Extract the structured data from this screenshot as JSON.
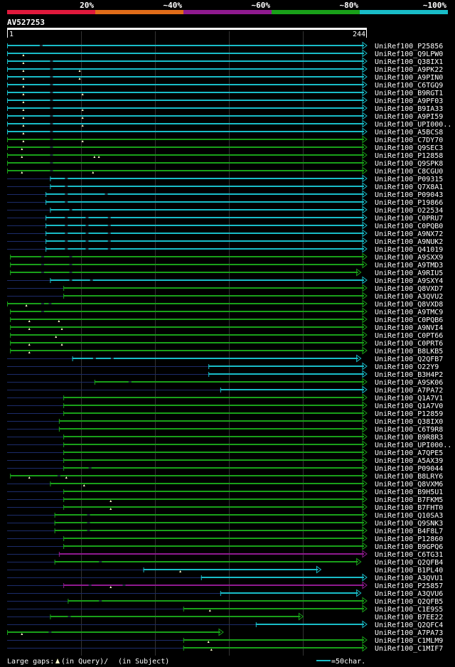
{
  "chart_data": {
    "type": "alignment-overview",
    "query_id": "AV527253",
    "query_start": "1",
    "query_end": "244",
    "query_length": 244,
    "identity_scale": {
      "labels": [
        "20%",
        "~40%",
        "~60%",
        "~80%",
        "~100%"
      ],
      "colors": [
        "#e0193c",
        "#e06c19",
        "#8f1a8f",
        "#19a019",
        "#19bcc8"
      ]
    },
    "hits": [
      {
        "name": "UniRef100_P25856",
        "qs": 1,
        "qe": 244,
        "color": "#19bcc8",
        "arrow": true,
        "gaps": [],
        "sgaps": [
          24
        ]
      },
      {
        "name": "UniRef100_Q9LPW0",
        "qs": 1,
        "qe": 244,
        "color": "#19bcc8",
        "arrow": true,
        "gaps": [
          12
        ],
        "sgaps": []
      },
      {
        "name": "UniRef100_Q38IX1",
        "qs": 1,
        "qe": 244,
        "color": "#19bcc8",
        "arrow": true,
        "gaps": [
          12
        ],
        "sgaps": [
          31
        ]
      },
      {
        "name": "UniRef100_A9PK22",
        "qs": 1,
        "qe": 244,
        "color": "#19bcc8",
        "arrow": true,
        "gaps": [
          12,
          50
        ],
        "sgaps": [
          31
        ]
      },
      {
        "name": "UniRef100_A9PIN0",
        "qs": 1,
        "qe": 244,
        "color": "#19bcc8",
        "arrow": true,
        "gaps": [
          12,
          50
        ],
        "sgaps": [
          31
        ]
      },
      {
        "name": "UniRef100_C6TGQ9",
        "qs": 1,
        "qe": 244,
        "color": "#19bcc8",
        "arrow": true,
        "gaps": [
          12
        ],
        "sgaps": [
          31
        ]
      },
      {
        "name": "UniRef100_B9RGT1",
        "qs": 1,
        "qe": 244,
        "color": "#19bcc8",
        "arrow": true,
        "gaps": [
          12,
          52
        ],
        "sgaps": [
          31
        ]
      },
      {
        "name": "UniRef100_A9PF03",
        "qs": 1,
        "qe": 244,
        "color": "#19bcc8",
        "arrow": true,
        "gaps": [
          12
        ],
        "sgaps": [
          31
        ]
      },
      {
        "name": "UniRef100_B9IA33",
        "qs": 1,
        "qe": 244,
        "color": "#19bcc8",
        "arrow": true,
        "gaps": [
          12,
          52
        ],
        "sgaps": [
          31
        ]
      },
      {
        "name": "UniRef100_A9PI59",
        "qs": 1,
        "qe": 244,
        "color": "#19bcc8",
        "arrow": true,
        "gaps": [
          12,
          52
        ],
        "sgaps": [
          31
        ]
      },
      {
        "name": "UniRef100_UPI000..",
        "qs": 1,
        "qe": 244,
        "color": "#19bcc8",
        "arrow": true,
        "gaps": [
          12,
          52
        ],
        "sgaps": [
          31
        ]
      },
      {
        "name": "UniRef100_A5BCS8",
        "qs": 1,
        "qe": 244,
        "color": "#19bcc8",
        "arrow": true,
        "gaps": [
          12
        ],
        "sgaps": [
          31
        ]
      },
      {
        "name": "UniRef100_C7DY70",
        "qs": 1,
        "qe": 244,
        "color": "#19a019",
        "arrow": true,
        "gaps": [
          12,
          52
        ],
        "sgaps": [
          31
        ]
      },
      {
        "name": "UniRef100_Q9SEC3",
        "qs": 1,
        "qe": 244,
        "color": "#19a019",
        "arrow": true,
        "gaps": [
          11
        ],
        "sgaps": [
          31
        ]
      },
      {
        "name": "UniRef100_P12858",
        "qs": 1,
        "qe": 244,
        "color": "#19a019",
        "arrow": true,
        "gaps": [
          11,
          60,
          63
        ],
        "sgaps": [
          31
        ]
      },
      {
        "name": "UniRef100_Q9SPK8",
        "qs": 1,
        "qe": 244,
        "color": "#19a019",
        "arrow": true,
        "gaps": [],
        "sgaps": [
          31
        ]
      },
      {
        "name": "UniRef100_C8CGU0",
        "qs": 1,
        "qe": 244,
        "color": "#19a019",
        "arrow": true,
        "gaps": [
          11,
          59
        ],
        "sgaps": [
          31
        ]
      },
      {
        "name": "UniRef100_P09315",
        "qs": 30,
        "qe": 244,
        "color": "#19bcc8",
        "arrow": true,
        "gaps": [],
        "sgaps": [
          41
        ]
      },
      {
        "name": "UniRef100_Q7X8A1",
        "qs": 30,
        "qe": 244,
        "color": "#19bcc8",
        "arrow": true,
        "gaps": [],
        "sgaps": [
          41
        ]
      },
      {
        "name": "UniRef100_P09043",
        "qs": 27,
        "qe": 244,
        "color": "#19bcc8",
        "arrow": true,
        "gaps": [],
        "sgaps": [
          41,
          68
        ]
      },
      {
        "name": "UniRef100_P19866",
        "qs": 27,
        "qe": 244,
        "color": "#19bcc8",
        "arrow": true,
        "gaps": [],
        "sgaps": [
          41
        ]
      },
      {
        "name": "UniRef100_O22534",
        "qs": 30,
        "qe": 244,
        "color": "#19bcc8",
        "arrow": true,
        "gaps": [],
        "sgaps": [
          44
        ]
      },
      {
        "name": "UniRef100_C0PRU7",
        "qs": 27,
        "qe": 244,
        "color": "#19bcc8",
        "arrow": true,
        "gaps": [],
        "sgaps": [
          41,
          55,
          70
        ]
      },
      {
        "name": "UniRef100_C0PQB0",
        "qs": 27,
        "qe": 244,
        "color": "#19bcc8",
        "arrow": true,
        "gaps": [],
        "sgaps": [
          41,
          55,
          70
        ]
      },
      {
        "name": "UniRef100_A9NX72",
        "qs": 27,
        "qe": 244,
        "color": "#19bcc8",
        "arrow": true,
        "gaps": [],
        "sgaps": [
          41,
          55,
          70
        ]
      },
      {
        "name": "UniRef100_A9NUK2",
        "qs": 27,
        "qe": 244,
        "color": "#19bcc8",
        "arrow": true,
        "gaps": [],
        "sgaps": [
          41,
          55,
          70
        ]
      },
      {
        "name": "UniRef100_Q41019",
        "qs": 27,
        "qe": 244,
        "color": "#19bcc8",
        "arrow": true,
        "gaps": [],
        "sgaps": [
          41,
          55,
          70
        ]
      },
      {
        "name": "UniRef100_A9SXX9",
        "qs": 3,
        "qe": 244,
        "color": "#19a019",
        "arrow": true,
        "gaps": [],
        "sgaps": [
          25,
          44
        ]
      },
      {
        "name": "UniRef100_A9TMD3",
        "qs": 3,
        "qe": 244,
        "color": "#19a019",
        "arrow": true,
        "gaps": [],
        "sgaps": [
          25,
          44
        ]
      },
      {
        "name": "UniRef100_A9RIU5",
        "qs": 3,
        "qe": 240,
        "color": "#19a019",
        "arrow": true,
        "gaps": [],
        "sgaps": [
          25,
          44
        ]
      },
      {
        "name": "UniRef100_A9SXY4",
        "qs": 30,
        "qe": 244,
        "color": "#19bcc8",
        "arrow": true,
        "gaps": [],
        "sgaps": [
          44,
          58
        ]
      },
      {
        "name": "UniRef100_Q8VXD7",
        "qs": 39,
        "qe": 244,
        "color": "#19a019",
        "arrow": true,
        "gaps": [],
        "sgaps": []
      },
      {
        "name": "UniRef100_A3QVU2",
        "qs": 39,
        "qe": 244,
        "color": "#19a019",
        "arrow": true,
        "gaps": [],
        "sgaps": []
      },
      {
        "name": "UniRef100_Q8VXD8",
        "qs": 1,
        "qe": 244,
        "color": "#19a019",
        "arrow": true,
        "gaps": [
          14
        ],
        "sgaps": [
          25,
          30
        ]
      },
      {
        "name": "UniRef100_A9TMC9",
        "qs": 3,
        "qe": 244,
        "color": "#19a019",
        "arrow": true,
        "gaps": [],
        "sgaps": [
          25
        ]
      },
      {
        "name": "UniRef100_C0PQB6",
        "qs": 3,
        "qe": 244,
        "color": "#19a019",
        "arrow": true,
        "gaps": [
          16,
          36
        ],
        "sgaps": []
      },
      {
        "name": "UniRef100_A9NVI4",
        "qs": 3,
        "qe": 244,
        "color": "#19a019",
        "arrow": true,
        "gaps": [
          16,
          38
        ],
        "sgaps": []
      },
      {
        "name": "UniRef100_C0PT66",
        "qs": 3,
        "qe": 244,
        "color": "#19a019",
        "arrow": true,
        "gaps": [
          34
        ],
        "sgaps": []
      },
      {
        "name": "UniRef100_C0PRT6",
        "qs": 3,
        "qe": 244,
        "color": "#19a019",
        "arrow": true,
        "gaps": [
          16,
          38
        ],
        "sgaps": []
      },
      {
        "name": "UniRef100_B8LKB5",
        "qs": 3,
        "qe": 244,
        "color": "#19a019",
        "arrow": true,
        "gaps": [
          16
        ],
        "sgaps": []
      },
      {
        "name": "UniRef100_Q2QFB7",
        "qs": 45,
        "qe": 240,
        "color": "#19bcc8",
        "arrow": true,
        "gaps": [],
        "sgaps": [
          60,
          72
        ]
      },
      {
        "name": "UniRef100_O22Y9",
        "qs": 137,
        "qe": 244,
        "color": "#19bcc8",
        "arrow": true,
        "gaps": [],
        "sgaps": []
      },
      {
        "name": "UniRef100_B3H4P2",
        "qs": 137,
        "qe": 244,
        "color": "#19bcc8",
        "arrow": true,
        "gaps": [],
        "sgaps": []
      },
      {
        "name": "UniRef100_A9SK06",
        "qs": 60,
        "qe": 244,
        "color": "#19a019",
        "arrow": true,
        "gaps": [],
        "sgaps": [
          84
        ]
      },
      {
        "name": "UniRef100_A7PA72",
        "qs": 145,
        "qe": 244,
        "color": "#19bcc8",
        "arrow": true,
        "gaps": [],
        "sgaps": []
      },
      {
        "name": "UniRef100_Q1A7V1",
        "qs": 39,
        "qe": 244,
        "color": "#19a019",
        "arrow": true,
        "gaps": [],
        "sgaps": []
      },
      {
        "name": "UniRef100_Q1A7V0",
        "qs": 39,
        "qe": 244,
        "color": "#19a019",
        "arrow": true,
        "gaps": [],
        "sgaps": []
      },
      {
        "name": "UniRef100_P12859",
        "qs": 39,
        "qe": 244,
        "color": "#19a019",
        "arrow": true,
        "gaps": [],
        "sgaps": []
      },
      {
        "name": "UniRef100_Q38IX0",
        "qs": 36,
        "qe": 244,
        "color": "#19a019",
        "arrow": true,
        "gaps": [],
        "sgaps": []
      },
      {
        "name": "UniRef100_C6T9R8",
        "qs": 36,
        "qe": 244,
        "color": "#19a019",
        "arrow": true,
        "gaps": [],
        "sgaps": []
      },
      {
        "name": "UniRef100_B9R8R3",
        "qs": 39,
        "qe": 244,
        "color": "#19a019",
        "arrow": true,
        "gaps": [],
        "sgaps": []
      },
      {
        "name": "UniRef100_UPI000..",
        "qs": 39,
        "qe": 244,
        "color": "#19a019",
        "arrow": true,
        "gaps": [],
        "sgaps": []
      },
      {
        "name": "UniRef100_A7QPE5",
        "qs": 39,
        "qe": 244,
        "color": "#19a019",
        "arrow": true,
        "gaps": [],
        "sgaps": []
      },
      {
        "name": "UniRef100_A5AX39",
        "qs": 39,
        "qe": 244,
        "color": "#19a019",
        "arrow": true,
        "gaps": [],
        "sgaps": []
      },
      {
        "name": "UniRef100_P09044",
        "qs": 39,
        "qe": 244,
        "color": "#19a019",
        "arrow": true,
        "gaps": [],
        "sgaps": [
          57
        ]
      },
      {
        "name": "UniRef100_B8LRY6",
        "qs": 3,
        "qe": 244,
        "color": "#19a019",
        "arrow": true,
        "gaps": [
          16,
          41
        ],
        "sgaps": [
          36
        ]
      },
      {
        "name": "UniRef100_Q8VXM6",
        "qs": 30,
        "qe": 244,
        "color": "#19a019",
        "arrow": true,
        "gaps": [
          53
        ],
        "sgaps": []
      },
      {
        "name": "UniRef100_B9H5U1",
        "qs": 39,
        "qe": 244,
        "color": "#19a019",
        "arrow": true,
        "gaps": [],
        "sgaps": []
      },
      {
        "name": "UniRef100_B7FKM5",
        "qs": 39,
        "qe": 244,
        "color": "#19a019",
        "arrow": true,
        "gaps": [
          71
        ],
        "sgaps": []
      },
      {
        "name": "UniRef100_B7FHT0",
        "qs": 39,
        "qe": 244,
        "color": "#19a019",
        "arrow": true,
        "gaps": [
          71
        ],
        "sgaps": []
      },
      {
        "name": "UniRef100_Q10SA3",
        "qs": 33,
        "qe": 244,
        "color": "#19a019",
        "arrow": true,
        "gaps": [],
        "sgaps": [
          56
        ]
      },
      {
        "name": "UniRef100_Q9SNK3",
        "qs": 33,
        "qe": 244,
        "color": "#19a019",
        "arrow": true,
        "gaps": [],
        "sgaps": [
          56
        ]
      },
      {
        "name": "UniRef100_B4F8L7",
        "qs": 33,
        "qe": 244,
        "color": "#19a019",
        "arrow": true,
        "gaps": [],
        "sgaps": [
          56
        ]
      },
      {
        "name": "UniRef100_P12860",
        "qs": 39,
        "qe": 244,
        "color": "#19a019",
        "arrow": true,
        "gaps": [],
        "sgaps": []
      },
      {
        "name": "UniRef100_B9GPQ6",
        "qs": 39,
        "qe": 244,
        "color": "#19a019",
        "arrow": true,
        "gaps": [],
        "sgaps": []
      },
      {
        "name": "UniRef100_C6TG31",
        "qs": 36,
        "qe": 244,
        "color": "#8f1a8f",
        "arrow": true,
        "gaps": [],
        "sgaps": []
      },
      {
        "name": "UniRef100_Q2QFB4",
        "qs": 33,
        "qe": 240,
        "color": "#19a019",
        "arrow": true,
        "gaps": [],
        "sgaps": [
          64
        ]
      },
      {
        "name": "UniRef100_B1PL40",
        "qs": 93,
        "qe": 213,
        "color": "#19bcc8",
        "arrow": true,
        "gaps": [
          118
        ],
        "sgaps": []
      },
      {
        "name": "UniRef100_A3QVU1",
        "qs": 132,
        "qe": 244,
        "color": "#19bcc8",
        "arrow": true,
        "gaps": [],
        "sgaps": []
      },
      {
        "name": "UniRef100_P25857",
        "qs": 39,
        "qe": 244,
        "color": "#8f1a8f",
        "arrow": true,
        "gaps": [
          71
        ],
        "sgaps": [
          57,
          80
        ]
      },
      {
        "name": "UniRef100_A3QVU6",
        "qs": 145,
        "qe": 240,
        "color": "#19bcc8",
        "arrow": true,
        "gaps": [],
        "sgaps": []
      },
      {
        "name": "UniRef100_Q2QFB5",
        "qs": 42,
        "qe": 244,
        "color": "#19a019",
        "arrow": true,
        "gaps": [],
        "sgaps": [
          64
        ]
      },
      {
        "name": "UniRef100_C1E9S5",
        "qs": 120,
        "qe": 244,
        "color": "#19a019",
        "arrow": true,
        "gaps": [
          138
        ],
        "sgaps": []
      },
      {
        "name": "UniRef100_B7EE22",
        "qs": 30,
        "qe": 201,
        "color": "#19a019",
        "arrow": true,
        "gaps": [],
        "sgaps": [
          43
        ]
      },
      {
        "name": "UniRef100_Q2QFC4",
        "qs": 169,
        "qe": 244,
        "color": "#19bcc8",
        "arrow": true,
        "gaps": [],
        "sgaps": []
      },
      {
        "name": "UniRef100_A7PA73",
        "qs": 1,
        "qe": 147,
        "color": "#19a019",
        "arrow": true,
        "gaps": [
          11
        ],
        "sgaps": [
          30
        ]
      },
      {
        "name": "UniRef100_C1MLM9",
        "qs": 120,
        "qe": 244,
        "color": "#19a019",
        "arrow": true,
        "gaps": [
          137
        ],
        "sgaps": []
      },
      {
        "name": "UniRef100_C1MIF7",
        "qs": 120,
        "qe": 244,
        "color": "#19a019",
        "arrow": true,
        "gaps": [
          139
        ],
        "sgaps": []
      }
    ],
    "footer": {
      "large_gaps_label": "Large gaps:",
      "in_query_label": "(in Query)/",
      "in_subject_label": "(in Subject)",
      "scale_label": "=50char."
    },
    "scale_unit_chars": 50
  }
}
